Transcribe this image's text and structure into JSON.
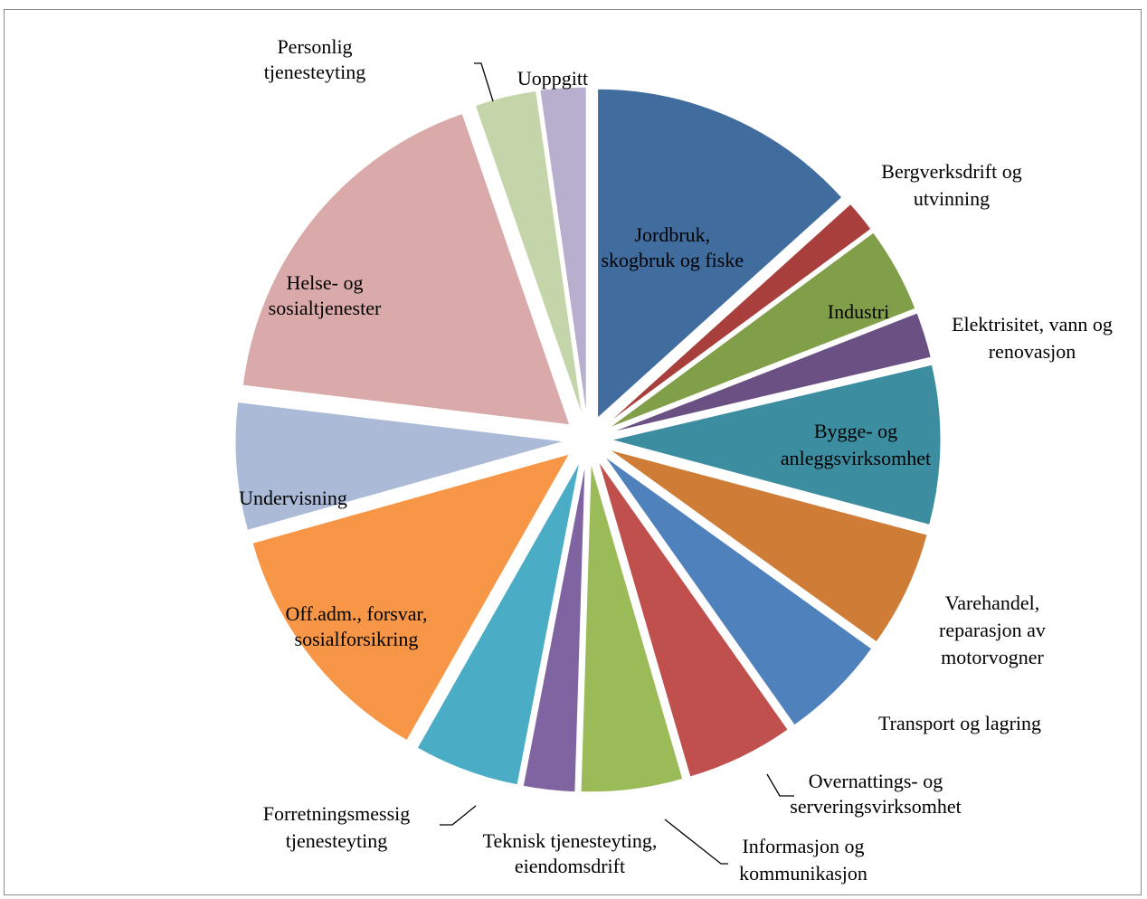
{
  "chart_data": {
    "type": "pie",
    "title": "",
    "exploded": true,
    "legend": "none",
    "slices": [
      {
        "label": [
          "Jordbruk,",
          "skogbruk og fiske"
        ],
        "value": 13.6,
        "color": "#416C9E"
      },
      {
        "label": [
          "Bergverksdrift og",
          "utvinning"
        ],
        "value": 1.6,
        "color": "#A83F3C"
      },
      {
        "label": [
          "Industri"
        ],
        "value": 4.3,
        "color": "#819E48"
      },
      {
        "label": [
          "Elektrisitet, vann og",
          "renovasjon"
        ],
        "value": 2.3,
        "color": "#6A5083"
      },
      {
        "label": [
          "Bygge- og",
          "anleggsvirksomhet"
        ],
        "value": 8.0,
        "color": "#3C8DA0"
      },
      {
        "label": [
          "Varehandel,",
          "reparasjon av",
          "motorvogner"
        ],
        "value": 5.9,
        "color": "#CF7C36"
      },
      {
        "label": [
          "Transport og lagring"
        ],
        "value": 5.4,
        "color": "#4F81BD"
      },
      {
        "label": [
          "Overnattings- og",
          "serveringsvirksomhet"
        ],
        "value": 5.4,
        "color": "#C0504D"
      },
      {
        "label": [
          "Informasjon og",
          "kommunikasjon"
        ],
        "value": 5.1,
        "color": "#9BBB59"
      },
      {
        "label": [
          "Teknisk tjenesteyting,",
          "eiendomsdrift"
        ],
        "value": 2.6,
        "color": "#8064A2"
      },
      {
        "label": [
          "Forretningsmessig",
          "tjenesteyting"
        ],
        "value": 5.3,
        "color": "#4BACC6"
      },
      {
        "label": [
          "Off.adm., forsvar,",
          "sosialforsikring"
        ],
        "value": 12.7,
        "color": "#F79646"
      },
      {
        "label": [
          "Undervisning"
        ],
        "value": 6.4,
        "color": "#AABAD7"
      },
      {
        "label": [
          "Helse- og",
          "sosialtjenester"
        ],
        "value": 18.2,
        "color": "#D9AAA9"
      },
      {
        "label": [
          "Personlig",
          "tjenesteyting"
        ],
        "value": 3.1,
        "color": "#C4D6A9"
      },
      {
        "label": [
          "Uoppgitt"
        ],
        "value": 2.3,
        "color": "#B8AECD"
      }
    ]
  }
}
